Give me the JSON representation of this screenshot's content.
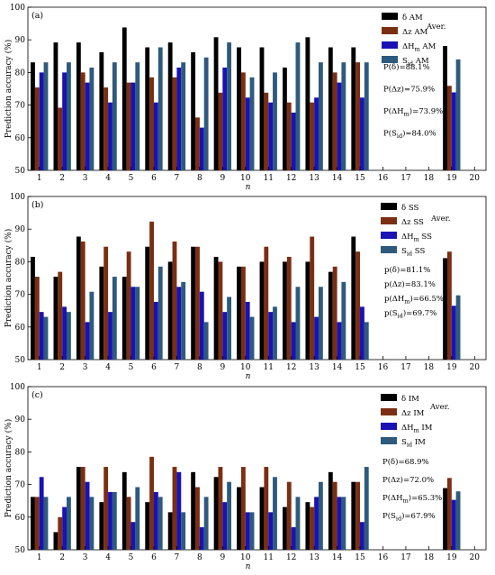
{
  "series_colors": [
    "#000000",
    "#7a2e12",
    "#1a12b4",
    "#2e5a7d"
  ],
  "chart_data": [
    {
      "type": "bar",
      "tag": "(a)",
      "ylabel": "Prediction accuracy (%)",
      "xlabel": "n",
      "ylim": [
        50,
        100
      ],
      "yticks": [
        50,
        60,
        70,
        80,
        90,
        100
      ],
      "xlim": [
        0.5,
        20.5
      ],
      "xticks": [
        1,
        2,
        3,
        4,
        5,
        6,
        7,
        8,
        9,
        10,
        11,
        12,
        13,
        14,
        15,
        16,
        17,
        18,
        19,
        20
      ],
      "grid": false,
      "legend_position": "top-right",
      "series": [
        {
          "name_prefix": "δ",
          "name_sub": "",
          "name_suffix": " AM",
          "values": [
            83.1,
            89.2,
            89.2,
            86.2,
            93.8,
            87.7,
            89.2,
            86.2,
            90.8,
            87.7,
            87.7,
            81.5,
            90.8,
            87.7,
            87.7
          ]
        },
        {
          "name_prefix": "Δz",
          "name_sub": "",
          "name_suffix": " AM",
          "values": [
            75.4,
            69.2,
            80.0,
            75.4,
            76.9,
            78.5,
            78.5,
            66.2,
            73.8,
            80.0,
            73.8,
            70.8,
            70.8,
            80.0,
            83.1
          ]
        },
        {
          "name_prefix": "ΔH",
          "name_sub": "m",
          "name_suffix": " AM",
          "values": [
            80.0,
            80.0,
            76.9,
            70.8,
            76.9,
            70.8,
            81.5,
            63.1,
            81.5,
            72.3,
            70.8,
            67.7,
            72.3,
            76.9,
            72.3
          ]
        },
        {
          "name_prefix": "S",
          "name_sub": "id",
          "name_suffix": " AM",
          "values": [
            83.1,
            83.1,
            81.5,
            83.1,
            83.1,
            87.7,
            83.1,
            84.6,
            89.2,
            78.5,
            80.0,
            89.2,
            83.1,
            83.1,
            83.1
          ]
        }
      ],
      "average_label": "Aver.",
      "average_x": 19,
      "averages": [
        88.1,
        75.9,
        73.9,
        84.0
      ],
      "annotations": [
        {
          "prefix": "P(δ",
          "sub": "",
          "suffix": ")=88.1%"
        },
        {
          "prefix": "P(Δz",
          "sub": "",
          "suffix": ")=75.9%"
        },
        {
          "prefix": "P(ΔH",
          "sub": "m",
          "suffix": ")=73.9%"
        },
        {
          "prefix": "P(S",
          "sub": "id",
          "suffix": ")=84.0%"
        }
      ]
    },
    {
      "type": "bar",
      "tag": "(b)",
      "ylabel": "Prediction accuracy (%)",
      "xlabel": "n",
      "ylim": [
        50,
        100
      ],
      "yticks": [
        50,
        60,
        70,
        80,
        90,
        100
      ],
      "xlim": [
        0.5,
        20.5
      ],
      "xticks": [
        1,
        2,
        3,
        4,
        5,
        6,
        7,
        8,
        9,
        10,
        11,
        12,
        13,
        14,
        15,
        16,
        17,
        18,
        19,
        20
      ],
      "grid": false,
      "legend_position": "top-right",
      "series": [
        {
          "name_prefix": "δ",
          "name_sub": "",
          "name_suffix": " SS",
          "values": [
            81.5,
            75.4,
            87.7,
            78.5,
            75.4,
            84.6,
            80.0,
            84.6,
            81.5,
            78.5,
            80.0,
            80.0,
            80.0,
            76.9,
            87.7
          ]
        },
        {
          "name_prefix": "Δz",
          "name_sub": "",
          "name_suffix": " SS",
          "values": [
            75.4,
            76.9,
            86.2,
            84.6,
            83.1,
            92.3,
            86.2,
            84.6,
            80.0,
            78.5,
            84.6,
            81.5,
            87.7,
            78.5,
            83.1
          ]
        },
        {
          "name_prefix": "ΔH",
          "name_sub": "m",
          "name_suffix": " SS",
          "values": [
            64.6,
            66.2,
            61.5,
            64.6,
            72.3,
            67.7,
            72.3,
            70.8,
            64.6,
            67.7,
            64.6,
            61.5,
            63.1,
            61.5,
            66.2
          ]
        },
        {
          "name_prefix": "S",
          "name_sub": "id",
          "name_suffix": " SS",
          "values": [
            63.1,
            64.6,
            70.8,
            75.4,
            72.3,
            78.5,
            73.8,
            61.5,
            69.2,
            63.1,
            66.2,
            72.3,
            72.3,
            73.8,
            61.5
          ]
        }
      ],
      "average_label": "Aver.",
      "average_x": 19,
      "averages": [
        81.1,
        83.1,
        66.5,
        69.7
      ],
      "annotations": [
        {
          "prefix": "p(δ",
          "sub": "",
          "suffix": ")=81.1%"
        },
        {
          "prefix": "p(Δz",
          "sub": "",
          "suffix": ")=83.1%"
        },
        {
          "prefix": "p(ΔH",
          "sub": "m",
          "suffix": ")=66.5%"
        },
        {
          "prefix": "p(S",
          "sub": "id",
          "suffix": ")=69.7%"
        }
      ]
    },
    {
      "type": "bar",
      "tag": "(c)",
      "ylabel": "Prediction accuracy (%)",
      "xlabel": "n",
      "ylim": [
        50,
        100
      ],
      "yticks": [
        50,
        60,
        70,
        80,
        90,
        100
      ],
      "xlim": [
        0.5,
        20.5
      ],
      "xticks": [
        1,
        2,
        3,
        4,
        5,
        6,
        7,
        8,
        9,
        10,
        11,
        12,
        13,
        14,
        15,
        16,
        17,
        18,
        19,
        20
      ],
      "grid": false,
      "legend_position": "top-right",
      "series": [
        {
          "name_prefix": "δ",
          "name_sub": "",
          "name_suffix": " IM",
          "values": [
            66.2,
            55.4,
            75.4,
            64.6,
            73.8,
            64.6,
            61.5,
            73.8,
            72.3,
            69.2,
            69.2,
            63.1,
            64.6,
            73.8,
            70.8
          ]
        },
        {
          "name_prefix": "Δz",
          "name_sub": "",
          "name_suffix": " IM",
          "values": [
            66.2,
            60.0,
            75.4,
            75.4,
            66.2,
            78.5,
            75.4,
            69.2,
            75.4,
            75.4,
            75.4,
            70.8,
            63.1,
            70.8,
            70.8
          ]
        },
        {
          "name_prefix": "ΔH",
          "name_sub": "m",
          "name_suffix": " IM",
          "values": [
            72.3,
            63.1,
            70.8,
            67.7,
            58.5,
            67.7,
            73.8,
            56.9,
            64.6,
            61.5,
            61.5,
            56.9,
            66.2,
            66.2,
            58.5
          ]
        },
        {
          "name_prefix": "S",
          "name_sub": "id",
          "name_suffix": " IM",
          "values": [
            66.2,
            66.2,
            66.2,
            67.7,
            69.2,
            66.2,
            61.5,
            66.2,
            70.8,
            61.5,
            72.3,
            66.2,
            70.8,
            66.2,
            75.4
          ]
        }
      ],
      "average_label": "Aver.",
      "average_x": 19,
      "averages": [
        68.9,
        72.0,
        65.3,
        67.9
      ],
      "annotations": [
        {
          "prefix": "P(δ",
          "sub": "",
          "suffix": ")=68.9%"
        },
        {
          "prefix": "P(Δz",
          "sub": "",
          "suffix": ")=72.0%"
        },
        {
          "prefix": "P(ΔH",
          "sub": "m",
          "suffix": ")=65.3%"
        },
        {
          "prefix": "P(S",
          "sub": "id",
          "suffix": ")=67.9%"
        }
      ]
    }
  ]
}
